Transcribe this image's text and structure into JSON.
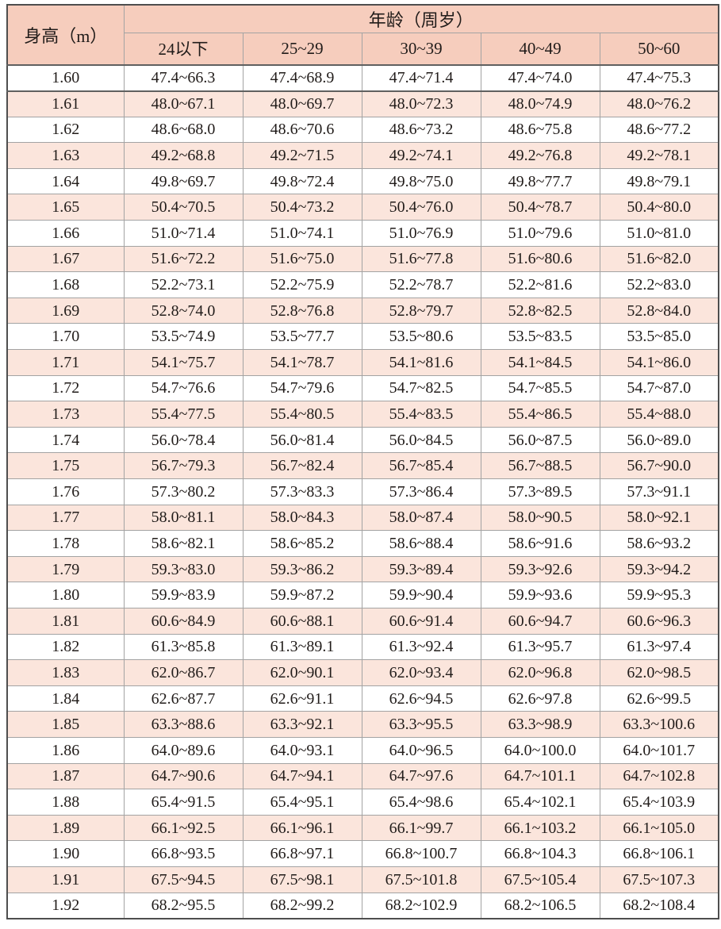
{
  "chart_data": {
    "type": "table",
    "header": {
      "height_label": "身高（m）",
      "age_label": "年龄（周岁）",
      "age_columns": [
        "24以下",
        "25~29",
        "30~39",
        "40~49",
        "50~60"
      ]
    },
    "rows": [
      {
        "height": "1.60",
        "values": [
          "47.4~66.3",
          "47.4~68.9",
          "47.4~71.4",
          "47.4~74.0",
          "47.4~75.3"
        ]
      },
      {
        "height": "1.61",
        "values": [
          "48.0~67.1",
          "48.0~69.7",
          "48.0~72.3",
          "48.0~74.9",
          "48.0~76.2"
        ]
      },
      {
        "height": "1.62",
        "values": [
          "48.6~68.0",
          "48.6~70.6",
          "48.6~73.2",
          "48.6~75.8",
          "48.6~77.2"
        ]
      },
      {
        "height": "1.63",
        "values": [
          "49.2~68.8",
          "49.2~71.5",
          "49.2~74.1",
          "49.2~76.8",
          "49.2~78.1"
        ]
      },
      {
        "height": "1.64",
        "values": [
          "49.8~69.7",
          "49.8~72.4",
          "49.8~75.0",
          "49.8~77.7",
          "49.8~79.1"
        ]
      },
      {
        "height": "1.65",
        "values": [
          "50.4~70.5",
          "50.4~73.2",
          "50.4~76.0",
          "50.4~78.7",
          "50.4~80.0"
        ]
      },
      {
        "height": "1.66",
        "values": [
          "51.0~71.4",
          "51.0~74.1",
          "51.0~76.9",
          "51.0~79.6",
          "51.0~81.0"
        ]
      },
      {
        "height": "1.67",
        "values": [
          "51.6~72.2",
          "51.6~75.0",
          "51.6~77.8",
          "51.6~80.6",
          "51.6~82.0"
        ]
      },
      {
        "height": "1.68",
        "values": [
          "52.2~73.1",
          "52.2~75.9",
          "52.2~78.7",
          "52.2~81.6",
          "52.2~83.0"
        ]
      },
      {
        "height": "1.69",
        "values": [
          "52.8~74.0",
          "52.8~76.8",
          "52.8~79.7",
          "52.8~82.5",
          "52.8~84.0"
        ]
      },
      {
        "height": "1.70",
        "values": [
          "53.5~74.9",
          "53.5~77.7",
          "53.5~80.6",
          "53.5~83.5",
          "53.5~85.0"
        ]
      },
      {
        "height": "1.71",
        "values": [
          "54.1~75.7",
          "54.1~78.7",
          "54.1~81.6",
          "54.1~84.5",
          "54.1~86.0"
        ]
      },
      {
        "height": "1.72",
        "values": [
          "54.7~76.6",
          "54.7~79.6",
          "54.7~82.5",
          "54.7~85.5",
          "54.7~87.0"
        ]
      },
      {
        "height": "1.73",
        "values": [
          "55.4~77.5",
          "55.4~80.5",
          "55.4~83.5",
          "55.4~86.5",
          "55.4~88.0"
        ]
      },
      {
        "height": "1.74",
        "values": [
          "56.0~78.4",
          "56.0~81.4",
          "56.0~84.5",
          "56.0~87.5",
          "56.0~89.0"
        ]
      },
      {
        "height": "1.75",
        "values": [
          "56.7~79.3",
          "56.7~82.4",
          "56.7~85.4",
          "56.7~88.5",
          "56.7~90.0"
        ]
      },
      {
        "height": "1.76",
        "values": [
          "57.3~80.2",
          "57.3~83.3",
          "57.3~86.4",
          "57.3~89.5",
          "57.3~91.1"
        ]
      },
      {
        "height": "1.77",
        "values": [
          "58.0~81.1",
          "58.0~84.3",
          "58.0~87.4",
          "58.0~90.5",
          "58.0~92.1"
        ]
      },
      {
        "height": "1.78",
        "values": [
          "58.6~82.1",
          "58.6~85.2",
          "58.6~88.4",
          "58.6~91.6",
          "58.6~93.2"
        ]
      },
      {
        "height": "1.79",
        "values": [
          "59.3~83.0",
          "59.3~86.2",
          "59.3~89.4",
          "59.3~92.6",
          "59.3~94.2"
        ]
      },
      {
        "height": "1.80",
        "values": [
          "59.9~83.9",
          "59.9~87.2",
          "59.9~90.4",
          "59.9~93.6",
          "59.9~95.3"
        ]
      },
      {
        "height": "1.81",
        "values": [
          "60.6~84.9",
          "60.6~88.1",
          "60.6~91.4",
          "60.6~94.7",
          "60.6~96.3"
        ]
      },
      {
        "height": "1.82",
        "values": [
          "61.3~85.8",
          "61.3~89.1",
          "61.3~92.4",
          "61.3~95.7",
          "61.3~97.4"
        ]
      },
      {
        "height": "1.83",
        "values": [
          "62.0~86.7",
          "62.0~90.1",
          "62.0~93.4",
          "62.0~96.8",
          "62.0~98.5"
        ]
      },
      {
        "height": "1.84",
        "values": [
          "62.6~87.7",
          "62.6~91.1",
          "62.6~94.5",
          "62.6~97.8",
          "62.6~99.5"
        ]
      },
      {
        "height": "1.85",
        "values": [
          "63.3~88.6",
          "63.3~92.1",
          "63.3~95.5",
          "63.3~98.9",
          "63.3~100.6"
        ]
      },
      {
        "height": "1.86",
        "values": [
          "64.0~89.6",
          "64.0~93.1",
          "64.0~96.5",
          "64.0~100.0",
          "64.0~101.7"
        ]
      },
      {
        "height": "1.87",
        "values": [
          "64.7~90.6",
          "64.7~94.1",
          "64.7~97.6",
          "64.7~101.1",
          "64.7~102.8"
        ]
      },
      {
        "height": "1.88",
        "values": [
          "65.4~91.5",
          "65.4~95.1",
          "65.4~98.6",
          "65.4~102.1",
          "65.4~103.9"
        ]
      },
      {
        "height": "1.89",
        "values": [
          "66.1~92.5",
          "66.1~96.1",
          "66.1~99.7",
          "66.1~103.2",
          "66.1~105.0"
        ]
      },
      {
        "height": "1.90",
        "values": [
          "66.8~93.5",
          "66.8~97.1",
          "66.8~100.7",
          "66.8~104.3",
          "66.8~106.1"
        ]
      },
      {
        "height": "1.91",
        "values": [
          "67.5~94.5",
          "67.5~98.1",
          "67.5~101.8",
          "67.5~105.4",
          "67.5~107.3"
        ]
      },
      {
        "height": "1.92",
        "values": [
          "68.2~95.5",
          "68.2~99.2",
          "68.2~102.9",
          "68.2~106.5",
          "68.2~108.4"
        ]
      }
    ]
  },
  "colors": {
    "header_bg": "#f6cdbd",
    "stripe_bg": "#fbe5dc",
    "row_bg": "#ffffff",
    "border": "#a3a3a3",
    "outer_border": "#4e4e4e",
    "text": "#211c1a"
  }
}
